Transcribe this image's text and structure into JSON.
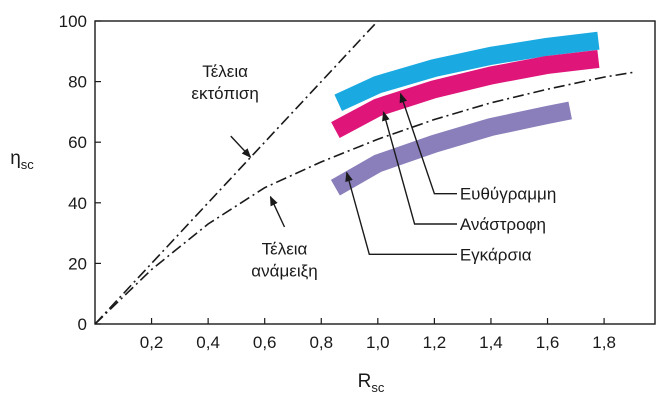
{
  "chart_data": {
    "type": "line",
    "xlabel": "R",
    "xlabel_sub": "sc",
    "ylabel": "η",
    "ylabel_sub": "sc",
    "xlim": [
      0,
      1.98
    ],
    "ylim": [
      0,
      100
    ],
    "xticks": [
      0.2,
      0.4,
      0.6,
      0.8,
      1.0,
      1.2,
      1.4,
      1.6,
      1.8
    ],
    "xtick_labels": [
      "0,2",
      "0,4",
      "0,6",
      "0,8",
      "1,0",
      "1,2",
      "1,4",
      "1,6",
      "1,8"
    ],
    "yticks": [
      0,
      20,
      40,
      60,
      80,
      100
    ],
    "ytick_labels": [
      "0",
      "20",
      "40",
      "60",
      "80",
      "100"
    ],
    "grid": false,
    "series": [
      {
        "name": "Τέλεια εκτόπιση",
        "style": "dash-dot",
        "color": "#1a1a1a",
        "points": [
          [
            0,
            0
          ],
          [
            0.5,
            50
          ],
          [
            1.0,
            100
          ]
        ]
      },
      {
        "name": "Τέλεια ανάμειξη",
        "style": "dash-dot",
        "color": "#1a1a1a",
        "points": [
          [
            0,
            0
          ],
          [
            0.2,
            18
          ],
          [
            0.4,
            33
          ],
          [
            0.6,
            45
          ],
          [
            0.8,
            53.5
          ],
          [
            1.0,
            61
          ],
          [
            1.2,
            67.5
          ],
          [
            1.4,
            73
          ],
          [
            1.6,
            77.5
          ],
          [
            1.8,
            81.5
          ],
          [
            1.9,
            83
          ]
        ]
      },
      {
        "name": "Ευθύγραμμη",
        "style": "band",
        "color": "#1aa9e1",
        "points": [
          [
            0.86,
            73
          ],
          [
            1.0,
            79
          ],
          [
            1.2,
            84.5
          ],
          [
            1.4,
            88.5
          ],
          [
            1.6,
            91.5
          ],
          [
            1.78,
            93.5
          ]
        ]
      },
      {
        "name": "Ανάστροφη",
        "style": "band",
        "color": "#e0157a",
        "points": [
          [
            0.85,
            64
          ],
          [
            1.0,
            71.5
          ],
          [
            1.2,
            77.5
          ],
          [
            1.4,
            82
          ],
          [
            1.6,
            85.5
          ],
          [
            1.78,
            87.5
          ]
        ]
      },
      {
        "name": "Εγκάρσια",
        "style": "band",
        "color": "#8a7fba",
        "points": [
          [
            0.85,
            45
          ],
          [
            1.0,
            53
          ],
          [
            1.2,
            59.5
          ],
          [
            1.4,
            65
          ],
          [
            1.6,
            69
          ],
          [
            1.68,
            70.5
          ]
        ]
      }
    ],
    "annotations": [
      {
        "lines": [
          "Τέλεια",
          "εκτόπιση"
        ],
        "anchor": "middle",
        "at": [
          0.46,
          83.5
        ],
        "arrow_from": [
          0.48,
          62
        ],
        "arrow_to": [
          0.55,
          55
        ]
      },
      {
        "lines": [
          "Τέλεια",
          "ανάμειξη"
        ],
        "anchor": "middle",
        "at": [
          0.67,
          25
        ],
        "arrow_from": [
          0.67,
          32
        ],
        "arrow_to": [
          0.62,
          42
        ]
      },
      {
        "lines": [
          "Ευθύγραμμη"
        ],
        "anchor": "start",
        "at": [
          1.29,
          43
        ],
        "elbow": [
          [
            1.28,
            43
          ],
          [
            1.2,
            43
          ],
          [
            1.08,
            76
          ]
        ]
      },
      {
        "lines": [
          "Ανάστροφη"
        ],
        "anchor": "start",
        "at": [
          1.29,
          33
        ],
        "elbow": [
          [
            1.28,
            33
          ],
          [
            1.13,
            33
          ],
          [
            1.02,
            70
          ]
        ]
      },
      {
        "lines": [
          "Εγκάρσια"
        ],
        "anchor": "start",
        "at": [
          1.29,
          23
        ],
        "elbow": [
          [
            1.28,
            23
          ],
          [
            0.97,
            23
          ],
          [
            0.89,
            50
          ]
        ]
      }
    ]
  }
}
